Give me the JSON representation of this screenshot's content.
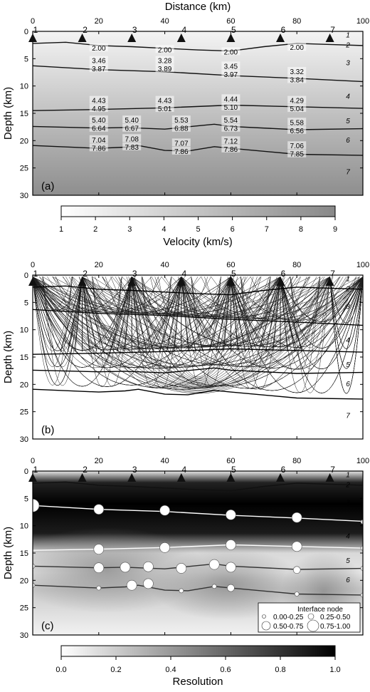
{
  "chart_data": [
    {
      "type": "heatmap",
      "panel_label": "(a)",
      "title": "Distance (km)",
      "xlabel": "Distance (km)",
      "ylabel": "Depth (km)",
      "xlim": [
        0,
        100
      ],
      "ylim": [
        30,
        0
      ],
      "x_ticks": [
        "0",
        "20",
        "40",
        "60",
        "80",
        "100"
      ],
      "y_ticks": [
        "0",
        "5",
        "10",
        "15",
        "20",
        "25",
        "30"
      ],
      "stations": [
        {
          "label": "1",
          "x": 0
        },
        {
          "label": "2",
          "x": 15
        },
        {
          "label": "3",
          "x": 30
        },
        {
          "label": "4",
          "x": 45
        },
        {
          "label": "5",
          "x": 60
        },
        {
          "label": "6",
          "x": 75
        },
        {
          "label": "7",
          "x": 90
        }
      ],
      "layer_labels": [
        {
          "label": "1",
          "depth": 0.6
        },
        {
          "label": "2",
          "depth": 2.4
        },
        {
          "label": "3",
          "depth": 5.7
        },
        {
          "label": "4",
          "depth": 11.8
        },
        {
          "label": "5",
          "depth": 16.3
        },
        {
          "label": "6",
          "depth": 19.8
        },
        {
          "label": "7",
          "depth": 25.6
        }
      ],
      "interfaces": [
        {
          "x": [
            0,
            10,
            20,
            30,
            40,
            50,
            60,
            70,
            80,
            90,
            100
          ],
          "depth": [
            2.2,
            2.0,
            2.6,
            2.8,
            3.1,
            3.4,
            3.6,
            2.8,
            2.2,
            2.4,
            2.6
          ]
        },
        {
          "x": [
            0,
            20,
            40,
            60,
            80,
            100
          ],
          "depth": [
            6.3,
            7.0,
            7.4,
            8.1,
            8.6,
            9.2
          ]
        },
        {
          "x": [
            0,
            20,
            40,
            60,
            80,
            100
          ],
          "depth": [
            14.5,
            14.3,
            14.0,
            13.5,
            13.8,
            14.1
          ]
        },
        {
          "x": [
            0,
            20,
            28,
            40,
            50,
            55,
            60,
            80,
            100
          ],
          "depth": [
            17.4,
            17.7,
            17.6,
            17.9,
            17.3,
            17.0,
            17.4,
            18.0,
            17.8
          ]
        },
        {
          "x": [
            0,
            20,
            28,
            32,
            40,
            47,
            55,
            60,
            80,
            100
          ],
          "depth": [
            20.9,
            21.4,
            21.2,
            20.9,
            21.8,
            21.9,
            21.1,
            21.4,
            22.5,
            22.7
          ]
        }
      ],
      "velocity_labels": [
        {
          "text": "2.00",
          "x": 20,
          "depth": 3.0
        },
        {
          "text": "2.00",
          "x": 40,
          "depth": 3.3
        },
        {
          "text": "2.00",
          "x": 60,
          "depth": 3.7
        },
        {
          "text": "2.00",
          "x": 80,
          "depth": 2.9
        },
        {
          "text": "3.46",
          "x": 20,
          "depth": 5.3
        },
        {
          "text": "3.87",
          "x": 20,
          "depth": 6.8
        },
        {
          "text": "3.28",
          "x": 40,
          "depth": 5.3
        },
        {
          "text": "3.89",
          "x": 40,
          "depth": 6.8
        },
        {
          "text": "3.45",
          "x": 60,
          "depth": 6.3
        },
        {
          "text": "3.97",
          "x": 60,
          "depth": 7.8
        },
        {
          "text": "3.32",
          "x": 80,
          "depth": 7.3
        },
        {
          "text": "3.84",
          "x": 80,
          "depth": 8.8
        },
        {
          "text": "4.43",
          "x": 20,
          "depth": 12.6
        },
        {
          "text": "4.95",
          "x": 20,
          "depth": 14.1
        },
        {
          "text": "4.43",
          "x": 40,
          "depth": 12.6
        },
        {
          "text": "5.01",
          "x": 40,
          "depth": 14.1
        },
        {
          "text": "4.44",
          "x": 60,
          "depth": 12.3
        },
        {
          "text": "5.10",
          "x": 60,
          "depth": 13.8
        },
        {
          "text": "4.29",
          "x": 80,
          "depth": 12.6
        },
        {
          "text": "5.04",
          "x": 80,
          "depth": 14.1
        },
        {
          "text": "5.40",
          "x": 20,
          "depth": 16.2
        },
        {
          "text": "6.64",
          "x": 20,
          "depth": 17.7
        },
        {
          "text": "5.40",
          "x": 30,
          "depth": 16.2
        },
        {
          "text": "6.67",
          "x": 30,
          "depth": 17.7
        },
        {
          "text": "5.53",
          "x": 45,
          "depth": 16.2
        },
        {
          "text": "6.88",
          "x": 45,
          "depth": 17.7
        },
        {
          "text": "5.54",
          "x": 60,
          "depth": 16.2
        },
        {
          "text": "6.73",
          "x": 60,
          "depth": 17.7
        },
        {
          "text": "5.58",
          "x": 80,
          "depth": 16.6
        },
        {
          "text": "6.56",
          "x": 80,
          "depth": 18.1
        },
        {
          "text": "7.04",
          "x": 20,
          "depth": 19.8
        },
        {
          "text": "7.86",
          "x": 20,
          "depth": 21.3
        },
        {
          "text": "7.08",
          "x": 30,
          "depth": 19.6
        },
        {
          "text": "7.83",
          "x": 30,
          "depth": 21.1
        },
        {
          "text": "7.07",
          "x": 45,
          "depth": 20.4
        },
        {
          "text": "7.86",
          "x": 45,
          "depth": 21.9
        },
        {
          "text": "7.12",
          "x": 60,
          "depth": 20.0
        },
        {
          "text": "7.86",
          "x": 60,
          "depth": 21.5
        },
        {
          "text": "7.06",
          "x": 80,
          "depth": 20.9
        },
        {
          "text": "7.85",
          "x": 80,
          "depth": 22.4
        }
      ],
      "colorbar": {
        "label": "Velocity (km/s)",
        "range": [
          1,
          9
        ],
        "ticks": [
          "1",
          "2",
          "3",
          "4",
          "5",
          "6",
          "7",
          "8",
          "9"
        ],
        "color_low": "#ffffff",
        "color_high": "#888888"
      }
    },
    {
      "type": "line",
      "panel_label": "(b)",
      "xlabel": "",
      "ylabel": "Depth (km)",
      "xlim": [
        0,
        100
      ],
      "ylim": [
        30,
        0
      ],
      "x_ticks": [
        "0",
        "20",
        "40",
        "60",
        "80",
        "100"
      ],
      "y_ticks": [
        "0",
        "5",
        "10",
        "15",
        "20",
        "25",
        "30"
      ],
      "stations": [
        {
          "label": "1",
          "x": 0
        },
        {
          "label": "2",
          "x": 15
        },
        {
          "label": "3",
          "x": 30
        },
        {
          "label": "4",
          "x": 45
        },
        {
          "label": "5",
          "x": 60
        },
        {
          "label": "6",
          "x": 75
        },
        {
          "label": "7",
          "x": 90
        }
      ],
      "layer_labels": [
        {
          "label": "1",
          "depth": 0.6
        },
        {
          "label": "2",
          "depth": 2.4
        },
        {
          "label": "3",
          "depth": 5.7
        },
        {
          "label": "4",
          "depth": 11.8
        },
        {
          "label": "5",
          "depth": 16.3
        },
        {
          "label": "6",
          "depth": 19.8
        },
        {
          "label": "7",
          "depth": 25.6
        }
      ]
    },
    {
      "type": "heatmap",
      "panel_label": "(c)",
      "xlabel": "",
      "ylabel": "Depth (km)",
      "xlim": [
        0,
        100
      ],
      "ylim": [
        30,
        0
      ],
      "x_ticks": [
        "0",
        "20",
        "40",
        "60",
        "80",
        "100"
      ],
      "y_ticks": [
        "0",
        "5",
        "10",
        "15",
        "20",
        "25",
        "30"
      ],
      "stations": [
        {
          "label": "1",
          "x": 0
        },
        {
          "label": "2",
          "x": 15
        },
        {
          "label": "3",
          "x": 30
        },
        {
          "label": "4",
          "x": 45
        },
        {
          "label": "5",
          "x": 60
        },
        {
          "label": "6",
          "x": 75
        },
        {
          "label": "7",
          "x": 90
        }
      ],
      "layer_labels": [
        {
          "label": "1",
          "depth": 0.6
        },
        {
          "label": "2",
          "depth": 2.4
        },
        {
          "label": "3",
          "depth": 5.7
        },
        {
          "label": "4",
          "depth": 11.8
        },
        {
          "label": "5",
          "depth": 16.3
        },
        {
          "label": "6",
          "depth": 19.8
        },
        {
          "label": "7",
          "depth": 25.6
        }
      ],
      "nodes": [
        {
          "x": 0,
          "depth": 6.3,
          "res": 0.8
        },
        {
          "x": 20,
          "depth": 7.0,
          "res": 0.7
        },
        {
          "x": 40,
          "depth": 7.2,
          "res": 0.7
        },
        {
          "x": 60,
          "depth": 8.0,
          "res": 0.7
        },
        {
          "x": 80,
          "depth": 8.5,
          "res": 0.7
        },
        {
          "x": 100,
          "depth": 9.3,
          "res": 0.2
        },
        {
          "x": 20,
          "depth": 14.3,
          "res": 0.7
        },
        {
          "x": 40,
          "depth": 14.0,
          "res": 0.7
        },
        {
          "x": 60,
          "depth": 13.5,
          "res": 0.7
        },
        {
          "x": 80,
          "depth": 13.8,
          "res": 0.7
        },
        {
          "x": 100,
          "depth": 14.1,
          "res": 0.1
        },
        {
          "x": 0,
          "depth": 17.4,
          "res": 0.2
        },
        {
          "x": 20,
          "depth": 17.7,
          "res": 0.7
        },
        {
          "x": 28,
          "depth": 17.6,
          "res": 0.7
        },
        {
          "x": 35,
          "depth": 17.5,
          "res": 0.6
        },
        {
          "x": 45,
          "depth": 17.8,
          "res": 0.6
        },
        {
          "x": 55,
          "depth": 17.1,
          "res": 0.6
        },
        {
          "x": 60,
          "depth": 17.6,
          "res": 0.6
        },
        {
          "x": 80,
          "depth": 18.1,
          "res": 0.4
        },
        {
          "x": 100,
          "depth": 17.8,
          "res": 0.1
        },
        {
          "x": 0,
          "depth": 20.9,
          "res": 0.1
        },
        {
          "x": 20,
          "depth": 21.4,
          "res": 0.2
        },
        {
          "x": 30,
          "depth": 20.9,
          "res": 0.6
        },
        {
          "x": 35,
          "depth": 20.6,
          "res": 0.6
        },
        {
          "x": 45,
          "depth": 21.9,
          "res": 0.2
        },
        {
          "x": 55,
          "depth": 21.1,
          "res": 0.1
        },
        {
          "x": 60,
          "depth": 21.4,
          "res": 0.3
        },
        {
          "x": 80,
          "depth": 22.5,
          "res": 0.2
        },
        {
          "x": 100,
          "depth": 22.7,
          "res": 0.1
        }
      ],
      "legend": {
        "title": "Interface node",
        "placement": "bottom-right",
        "entries": [
          "0.00-0.25",
          "0.25-0.50",
          "0.50-0.75",
          "0.75-1.00"
        ]
      },
      "colorbar": {
        "label": "Resolution",
        "range": [
          0.0,
          1.0
        ],
        "ticks": [
          "0.0",
          "0.2",
          "0.4",
          "0.6",
          "0.8",
          "1.0"
        ],
        "color_low": "#ffffff",
        "color_high": "#000000"
      }
    }
  ]
}
